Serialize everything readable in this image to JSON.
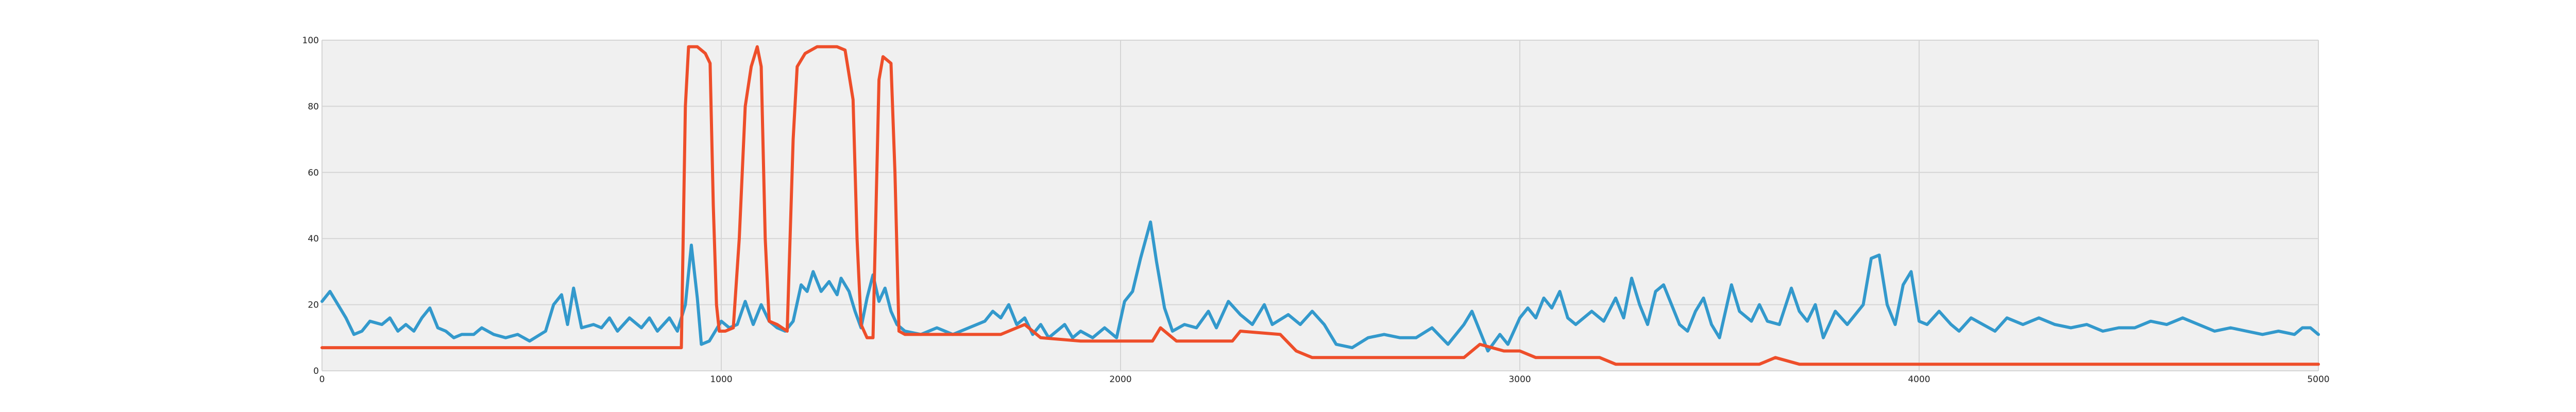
{
  "chart_data": {
    "type": "line",
    "title": "",
    "xlabel": "",
    "ylabel": "",
    "xlim": [
      0,
      5000
    ],
    "ylim": [
      0,
      100
    ],
    "grid": true,
    "legend": "none",
    "x_ticks": [
      0,
      1000,
      2000,
      3000,
      4000,
      5000
    ],
    "y_ticks": [
      0,
      20,
      40,
      60,
      80,
      100
    ],
    "series": [
      {
        "color": "#3399cc",
        "points": [
          [
            0,
            21
          ],
          [
            20,
            24
          ],
          [
            40,
            20
          ],
          [
            60,
            16
          ],
          [
            80,
            11
          ],
          [
            100,
            12
          ],
          [
            120,
            15
          ],
          [
            150,
            14
          ],
          [
            170,
            16
          ],
          [
            190,
            12
          ],
          [
            210,
            14
          ],
          [
            230,
            12
          ],
          [
            250,
            16
          ],
          [
            270,
            19
          ],
          [
            290,
            13
          ],
          [
            310,
            12
          ],
          [
            330,
            10
          ],
          [
            350,
            11
          ],
          [
            380,
            11
          ],
          [
            400,
            13
          ],
          [
            430,
            11
          ],
          [
            460,
            10
          ],
          [
            490,
            11
          ],
          [
            520,
            9
          ],
          [
            560,
            12
          ],
          [
            580,
            20
          ],
          [
            600,
            23
          ],
          [
            615,
            14
          ],
          [
            630,
            25
          ],
          [
            650,
            13
          ],
          [
            680,
            14
          ],
          [
            700,
            13
          ],
          [
            720,
            16
          ],
          [
            740,
            12
          ],
          [
            770,
            16
          ],
          [
            800,
            13
          ],
          [
            820,
            16
          ],
          [
            840,
            12
          ],
          [
            870,
            16
          ],
          [
            890,
            12
          ],
          [
            910,
            20
          ],
          [
            925,
            38
          ],
          [
            940,
            22
          ],
          [
            950,
            8
          ],
          [
            970,
            9
          ],
          [
            985,
            12
          ],
          [
            1000,
            15
          ],
          [
            1020,
            13
          ],
          [
            1040,
            14
          ],
          [
            1060,
            21
          ],
          [
            1080,
            14
          ],
          [
            1100,
            20
          ],
          [
            1120,
            15
          ],
          [
            1140,
            13
          ],
          [
            1160,
            12
          ],
          [
            1180,
            15
          ],
          [
            1200,
            26
          ],
          [
            1215,
            24
          ],
          [
            1230,
            30
          ],
          [
            1250,
            24
          ],
          [
            1270,
            27
          ],
          [
            1290,
            23
          ],
          [
            1300,
            28
          ],
          [
            1320,
            24
          ],
          [
            1335,
            18
          ],
          [
            1350,
            13
          ],
          [
            1365,
            22
          ],
          [
            1380,
            29
          ],
          [
            1395,
            21
          ],
          [
            1410,
            25
          ],
          [
            1425,
            18
          ],
          [
            1440,
            14
          ],
          [
            1460,
            12
          ],
          [
            1500,
            11
          ],
          [
            1540,
            13
          ],
          [
            1580,
            11
          ],
          [
            1620,
            13
          ],
          [
            1660,
            15
          ],
          [
            1680,
            18
          ],
          [
            1700,
            16
          ],
          [
            1720,
            20
          ],
          [
            1740,
            14
          ],
          [
            1760,
            16
          ],
          [
            1780,
            11
          ],
          [
            1800,
            14
          ],
          [
            1820,
            10
          ],
          [
            1840,
            12
          ],
          [
            1860,
            14
          ],
          [
            1880,
            10
          ],
          [
            1900,
            12
          ],
          [
            1930,
            10
          ],
          [
            1960,
            13
          ],
          [
            1990,
            10
          ],
          [
            2010,
            21
          ],
          [
            2030,
            24
          ],
          [
            2050,
            34
          ],
          [
            2075,
            45
          ],
          [
            2090,
            33
          ],
          [
            2110,
            19
          ],
          [
            2130,
            12
          ],
          [
            2160,
            14
          ],
          [
            2190,
            13
          ],
          [
            2220,
            18
          ],
          [
            2240,
            13
          ],
          [
            2270,
            21
          ],
          [
            2300,
            17
          ],
          [
            2330,
            14
          ],
          [
            2360,
            20
          ],
          [
            2380,
            14
          ],
          [
            2420,
            17
          ],
          [
            2450,
            14
          ],
          [
            2480,
            18
          ],
          [
            2510,
            14
          ],
          [
            2540,
            8
          ],
          [
            2580,
            7
          ],
          [
            2620,
            10
          ],
          [
            2660,
            11
          ],
          [
            2700,
            10
          ],
          [
            2740,
            10
          ],
          [
            2780,
            13
          ],
          [
            2820,
            8
          ],
          [
            2860,
            14
          ],
          [
            2880,
            18
          ],
          [
            2900,
            12
          ],
          [
            2920,
            6
          ],
          [
            2950,
            11
          ],
          [
            2970,
            8
          ],
          [
            3000,
            16
          ],
          [
            3020,
            19
          ],
          [
            3040,
            16
          ],
          [
            3060,
            22
          ],
          [
            3080,
            19
          ],
          [
            3100,
            24
          ],
          [
            3120,
            16
          ],
          [
            3140,
            14
          ],
          [
            3180,
            18
          ],
          [
            3210,
            15
          ],
          [
            3240,
            22
          ],
          [
            3260,
            16
          ],
          [
            3280,
            28
          ],
          [
            3300,
            20
          ],
          [
            3320,
            14
          ],
          [
            3340,
            24
          ],
          [
            3360,
            26
          ],
          [
            3380,
            20
          ],
          [
            3400,
            14
          ],
          [
            3420,
            12
          ],
          [
            3440,
            18
          ],
          [
            3460,
            22
          ],
          [
            3480,
            14
          ],
          [
            3500,
            10
          ],
          [
            3530,
            26
          ],
          [
            3550,
            18
          ],
          [
            3580,
            15
          ],
          [
            3600,
            20
          ],
          [
            3620,
            15
          ],
          [
            3650,
            14
          ],
          [
            3680,
            25
          ],
          [
            3700,
            18
          ],
          [
            3720,
            15
          ],
          [
            3740,
            20
          ],
          [
            3760,
            10
          ],
          [
            3790,
            18
          ],
          [
            3820,
            14
          ],
          [
            3860,
            20
          ],
          [
            3880,
            34
          ],
          [
            3900,
            35
          ],
          [
            3920,
            20
          ],
          [
            3940,
            14
          ],
          [
            3960,
            26
          ],
          [
            3980,
            30
          ],
          [
            4000,
            15
          ],
          [
            4020,
            14
          ],
          [
            4050,
            18
          ],
          [
            4080,
            14
          ],
          [
            4100,
            12
          ],
          [
            4130,
            16
          ],
          [
            4160,
            14
          ],
          [
            4190,
            12
          ],
          [
            4220,
            16
          ],
          [
            4260,
            14
          ],
          [
            4300,
            16
          ],
          [
            4340,
            14
          ],
          [
            4380,
            13
          ],
          [
            4420,
            14
          ],
          [
            4460,
            12
          ],
          [
            4500,
            13
          ],
          [
            4540,
            13
          ],
          [
            4580,
            15
          ],
          [
            4620,
            14
          ],
          [
            4660,
            16
          ],
          [
            4700,
            14
          ],
          [
            4740,
            12
          ],
          [
            4780,
            13
          ],
          [
            4820,
            12
          ],
          [
            4860,
            11
          ],
          [
            4900,
            12
          ],
          [
            4940,
            11
          ],
          [
            4960,
            13
          ],
          [
            4980,
            13
          ],
          [
            5000,
            11
          ]
        ]
      },
      {
        "color": "#ee4e2a",
        "points": [
          [
            0,
            7
          ],
          [
            900,
            7
          ],
          [
            910,
            80
          ],
          [
            918,
            98
          ],
          [
            940,
            98
          ],
          [
            960,
            96
          ],
          [
            972,
            93
          ],
          [
            980,
            50
          ],
          [
            988,
            20
          ],
          [
            995,
            12
          ],
          [
            1010,
            12
          ],
          [
            1030,
            13
          ],
          [
            1045,
            40
          ],
          [
            1060,
            80
          ],
          [
            1075,
            92
          ],
          [
            1090,
            98
          ],
          [
            1100,
            92
          ],
          [
            1110,
            40
          ],
          [
            1120,
            15
          ],
          [
            1140,
            14
          ],
          [
            1165,
            12
          ],
          [
            1180,
            70
          ],
          [
            1190,
            92
          ],
          [
            1210,
            96
          ],
          [
            1240,
            98
          ],
          [
            1290,
            98
          ],
          [
            1310,
            97
          ],
          [
            1330,
            82
          ],
          [
            1340,
            40
          ],
          [
            1350,
            14
          ],
          [
            1365,
            10
          ],
          [
            1380,
            10
          ],
          [
            1395,
            88
          ],
          [
            1405,
            95
          ],
          [
            1425,
            93
          ],
          [
            1435,
            60
          ],
          [
            1445,
            12
          ],
          [
            1460,
            11
          ],
          [
            1600,
            11
          ],
          [
            1700,
            11
          ],
          [
            1760,
            14
          ],
          [
            1800,
            10
          ],
          [
            1900,
            9
          ],
          [
            2080,
            9
          ],
          [
            2100,
            13
          ],
          [
            2140,
            9
          ],
          [
            2280,
            9
          ],
          [
            2300,
            12
          ],
          [
            2400,
            11
          ],
          [
            2440,
            6
          ],
          [
            2480,
            4
          ],
          [
            2560,
            4
          ],
          [
            2860,
            4
          ],
          [
            2900,
            8
          ],
          [
            2960,
            6
          ],
          [
            3000,
            6
          ],
          [
            3040,
            4
          ],
          [
            3200,
            4
          ],
          [
            3240,
            2
          ],
          [
            3600,
            2
          ],
          [
            3640,
            4
          ],
          [
            3700,
            2
          ],
          [
            5000,
            2
          ]
        ]
      }
    ]
  }
}
